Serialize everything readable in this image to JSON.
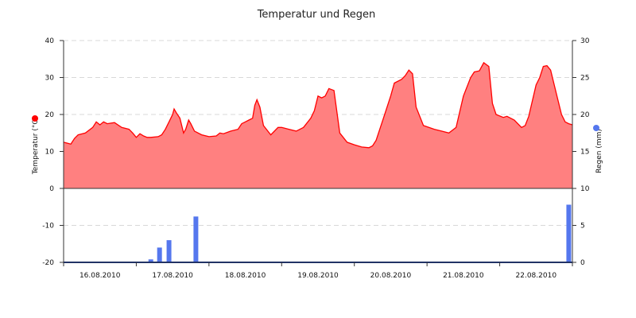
{
  "chart_data": {
    "type": "area+bar",
    "title": "Temperatur und Regen",
    "x_categories": [
      "16.08.2010",
      "17.08.2010",
      "18.08.2010",
      "19.08.2010",
      "20.08.2010",
      "21.08.2010",
      "22.08.2010"
    ],
    "y_left": {
      "label": "Temperatur (°C)",
      "ticks": [
        "40",
        "30",
        "20",
        "10",
        "0",
        "-10",
        "-20"
      ],
      "range": [
        -20,
        40
      ]
    },
    "y_right": {
      "label": "Regen (mm)",
      "ticks": [
        "30",
        "25",
        "20",
        "15",
        "10",
        "5",
        "0"
      ],
      "range": [
        0,
        30
      ]
    },
    "series": [
      {
        "name": "Temperatur",
        "type": "area",
        "color": "#ff0000",
        "fill": "#ff8080",
        "unit": "°C",
        "points": [
          [
            0.0,
            12.5
          ],
          [
            0.1,
            12.0
          ],
          [
            0.15,
            13.5
          ],
          [
            0.2,
            14.5
          ],
          [
            0.3,
            15.0
          ],
          [
            0.4,
            16.5
          ],
          [
            0.45,
            18.0
          ],
          [
            0.5,
            17.2
          ],
          [
            0.55,
            18.0
          ],
          [
            0.6,
            17.5
          ],
          [
            0.7,
            17.8
          ],
          [
            0.8,
            16.5
          ],
          [
            0.9,
            16.0
          ],
          [
            0.95,
            15.0
          ],
          [
            1.0,
            13.8
          ],
          [
            1.05,
            14.8
          ],
          [
            1.1,
            14.2
          ],
          [
            1.15,
            13.8
          ],
          [
            1.2,
            13.8
          ],
          [
            1.3,
            14.0
          ],
          [
            1.35,
            14.5
          ],
          [
            1.4,
            16.0
          ],
          [
            1.45,
            18.0
          ],
          [
            1.5,
            20.0
          ],
          [
            1.52,
            21.5
          ],
          [
            1.55,
            20.5
          ],
          [
            1.6,
            19.0
          ],
          [
            1.65,
            15.0
          ],
          [
            1.68,
            16.0
          ],
          [
            1.72,
            18.5
          ],
          [
            1.75,
            17.5
          ],
          [
            1.8,
            15.5
          ],
          [
            1.9,
            14.5
          ],
          [
            2.0,
            14.0
          ],
          [
            2.1,
            14.2
          ],
          [
            2.15,
            15.0
          ],
          [
            2.2,
            14.8
          ],
          [
            2.3,
            15.5
          ],
          [
            2.4,
            16.0
          ],
          [
            2.45,
            17.5
          ],
          [
            2.5,
            18.0
          ],
          [
            2.55,
            18.5
          ],
          [
            2.6,
            19.0
          ],
          [
            2.63,
            22.5
          ],
          [
            2.66,
            24.0
          ],
          [
            2.7,
            22.0
          ],
          [
            2.75,
            17.0
          ],
          [
            2.85,
            14.5
          ],
          [
            2.95,
            16.5
          ],
          [
            3.0,
            16.5
          ],
          [
            3.1,
            16.0
          ],
          [
            3.2,
            15.5
          ],
          [
            3.3,
            16.5
          ],
          [
            3.4,
            19.0
          ],
          [
            3.45,
            21.0
          ],
          [
            3.5,
            25.0
          ],
          [
            3.55,
            24.5
          ],
          [
            3.6,
            25.0
          ],
          [
            3.65,
            27.0
          ],
          [
            3.72,
            26.5
          ],
          [
            3.8,
            15.0
          ],
          [
            3.9,
            12.5
          ],
          [
            4.0,
            11.8
          ],
          [
            4.1,
            11.2
          ],
          [
            4.2,
            11.0
          ],
          [
            4.25,
            11.5
          ],
          [
            4.3,
            13.0
          ],
          [
            4.4,
            19.0
          ],
          [
            4.5,
            25.0
          ],
          [
            4.55,
            28.5
          ],
          [
            4.65,
            29.5
          ],
          [
            4.7,
            30.5
          ],
          [
            4.75,
            32.0
          ],
          [
            4.8,
            31.0
          ],
          [
            4.85,
            22.0
          ],
          [
            4.95,
            17.0
          ],
          [
            5.1,
            16.0
          ],
          [
            5.2,
            15.5
          ],
          [
            5.3,
            15.0
          ],
          [
            5.4,
            16.5
          ],
          [
            5.5,
            25.0
          ],
          [
            5.6,
            30.0
          ],
          [
            5.65,
            31.5
          ],
          [
            5.72,
            31.8
          ],
          [
            5.78,
            34.0
          ],
          [
            5.85,
            33.0
          ],
          [
            5.9,
            23.0
          ],
          [
            5.95,
            20.0
          ],
          [
            6.05,
            19.2
          ],
          [
            6.1,
            19.5
          ],
          [
            6.2,
            18.5
          ],
          [
            6.3,
            16.5
          ],
          [
            6.35,
            17.0
          ],
          [
            6.4,
            19.5
          ],
          [
            6.5,
            28.0
          ],
          [
            6.55,
            30.0
          ],
          [
            6.6,
            33.0
          ],
          [
            6.65,
            33.2
          ],
          [
            6.7,
            32.0
          ],
          [
            6.8,
            24.0
          ],
          [
            6.85,
            20.0
          ],
          [
            6.9,
            18.0
          ],
          [
            6.95,
            17.5
          ],
          [
            7.0,
            17.2
          ]
        ]
      },
      {
        "name": "Regen",
        "type": "bar",
        "color": "#5577ee",
        "unit": "mm",
        "points": [
          [
            1.2,
            0.4
          ],
          [
            1.32,
            2.0
          ],
          [
            1.45,
            3.0
          ],
          [
            1.82,
            6.2
          ],
          [
            6.95,
            7.8
          ]
        ]
      }
    ],
    "grid": "dashed horizontal",
    "legend": "none"
  }
}
